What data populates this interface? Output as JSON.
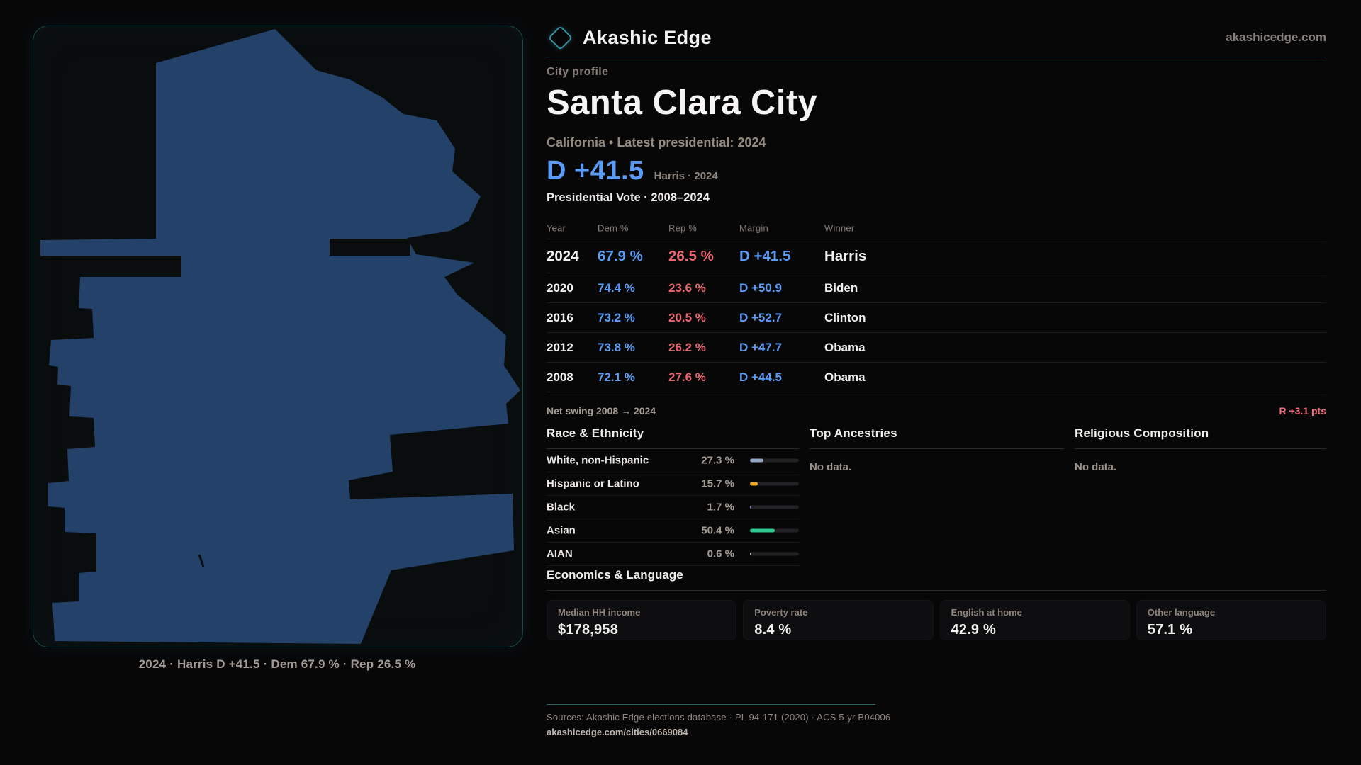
{
  "brand": {
    "name": "Akashic Edge",
    "domain": "akashicedge.com"
  },
  "header": {
    "eyebrow": "City profile",
    "title": "Santa Clara City",
    "subtitle": "California • Latest presidential: 2024"
  },
  "headline_margin": {
    "value": "D +41.5",
    "context": "Harris · 2024"
  },
  "map": {
    "caption": "2024 · Harris D +41.5 · Dem 67.9 % · Rep 26.5 %",
    "shape_color": "#234169"
  },
  "elections": {
    "section_title": "Presidential Vote · 2008–2024",
    "columns": [
      "Year",
      "Dem %",
      "Rep %",
      "Margin",
      "Winner"
    ],
    "rows": [
      {
        "year": "2024",
        "dem": "67.9 %",
        "rep": "26.5 %",
        "margin": "D +41.5",
        "winner": "Harris",
        "latest": true
      },
      {
        "year": "2020",
        "dem": "74.4 %",
        "rep": "23.6 %",
        "margin": "D +50.9",
        "winner": "Biden"
      },
      {
        "year": "2016",
        "dem": "73.2 %",
        "rep": "20.5 %",
        "margin": "D +52.7",
        "winner": "Clinton"
      },
      {
        "year": "2012",
        "dem": "73.8 %",
        "rep": "26.2 %",
        "margin": "D +47.7",
        "winner": "Obama"
      },
      {
        "year": "2008",
        "dem": "72.1 %",
        "rep": "27.6 %",
        "margin": "D +44.5",
        "winner": "Obama"
      }
    ],
    "net_swing_label": "Net swing 2008 → 2024",
    "net_swing_value": "R +3.1 pts"
  },
  "race_ethnicity": {
    "title": "Race & Ethnicity",
    "rows": [
      {
        "label": "White, non-Hispanic",
        "value": "27.3 %",
        "pct": 27.3,
        "color": "#93a7c4"
      },
      {
        "label": "Hispanic or Latino",
        "value": "15.7 %",
        "pct": 15.7,
        "color": "#eda92c"
      },
      {
        "label": "Black",
        "value": "1.7 %",
        "pct": 1.7,
        "color": "#9a8df0"
      },
      {
        "label": "Asian",
        "value": "50.4 %",
        "pct": 50.4,
        "color": "#2dc98f"
      },
      {
        "label": "AIAN",
        "value": "0.6 %",
        "pct": 0.6,
        "color": "#c9c9c9"
      }
    ]
  },
  "ancestries": {
    "title": "Top Ancestries",
    "empty": "No data."
  },
  "religion": {
    "title": "Religious Composition",
    "empty": "No data."
  },
  "economics": {
    "title": "Economics & Language",
    "stats": [
      {
        "label": "Median HH income",
        "value": "$178,958"
      },
      {
        "label": "Poverty rate",
        "value": "8.4 %"
      },
      {
        "label": "English at home",
        "value": "42.9 %"
      },
      {
        "label": "Other language",
        "value": "57.1 %"
      }
    ]
  },
  "footer": {
    "sources": "Sources: Akashic Edge elections database · PL 94-171 (2020) · ACS 5-yr B04006",
    "permalink": "akashicedge.com/cities/0669084"
  },
  "colors": {
    "dem_blue": "#5b9cf6",
    "rep_red": "#ea6570",
    "swing_red": "#f2707e",
    "accent_teal": "#35909f",
    "map_fill": "#234169",
    "panel_bg": "#0a0d0e"
  }
}
